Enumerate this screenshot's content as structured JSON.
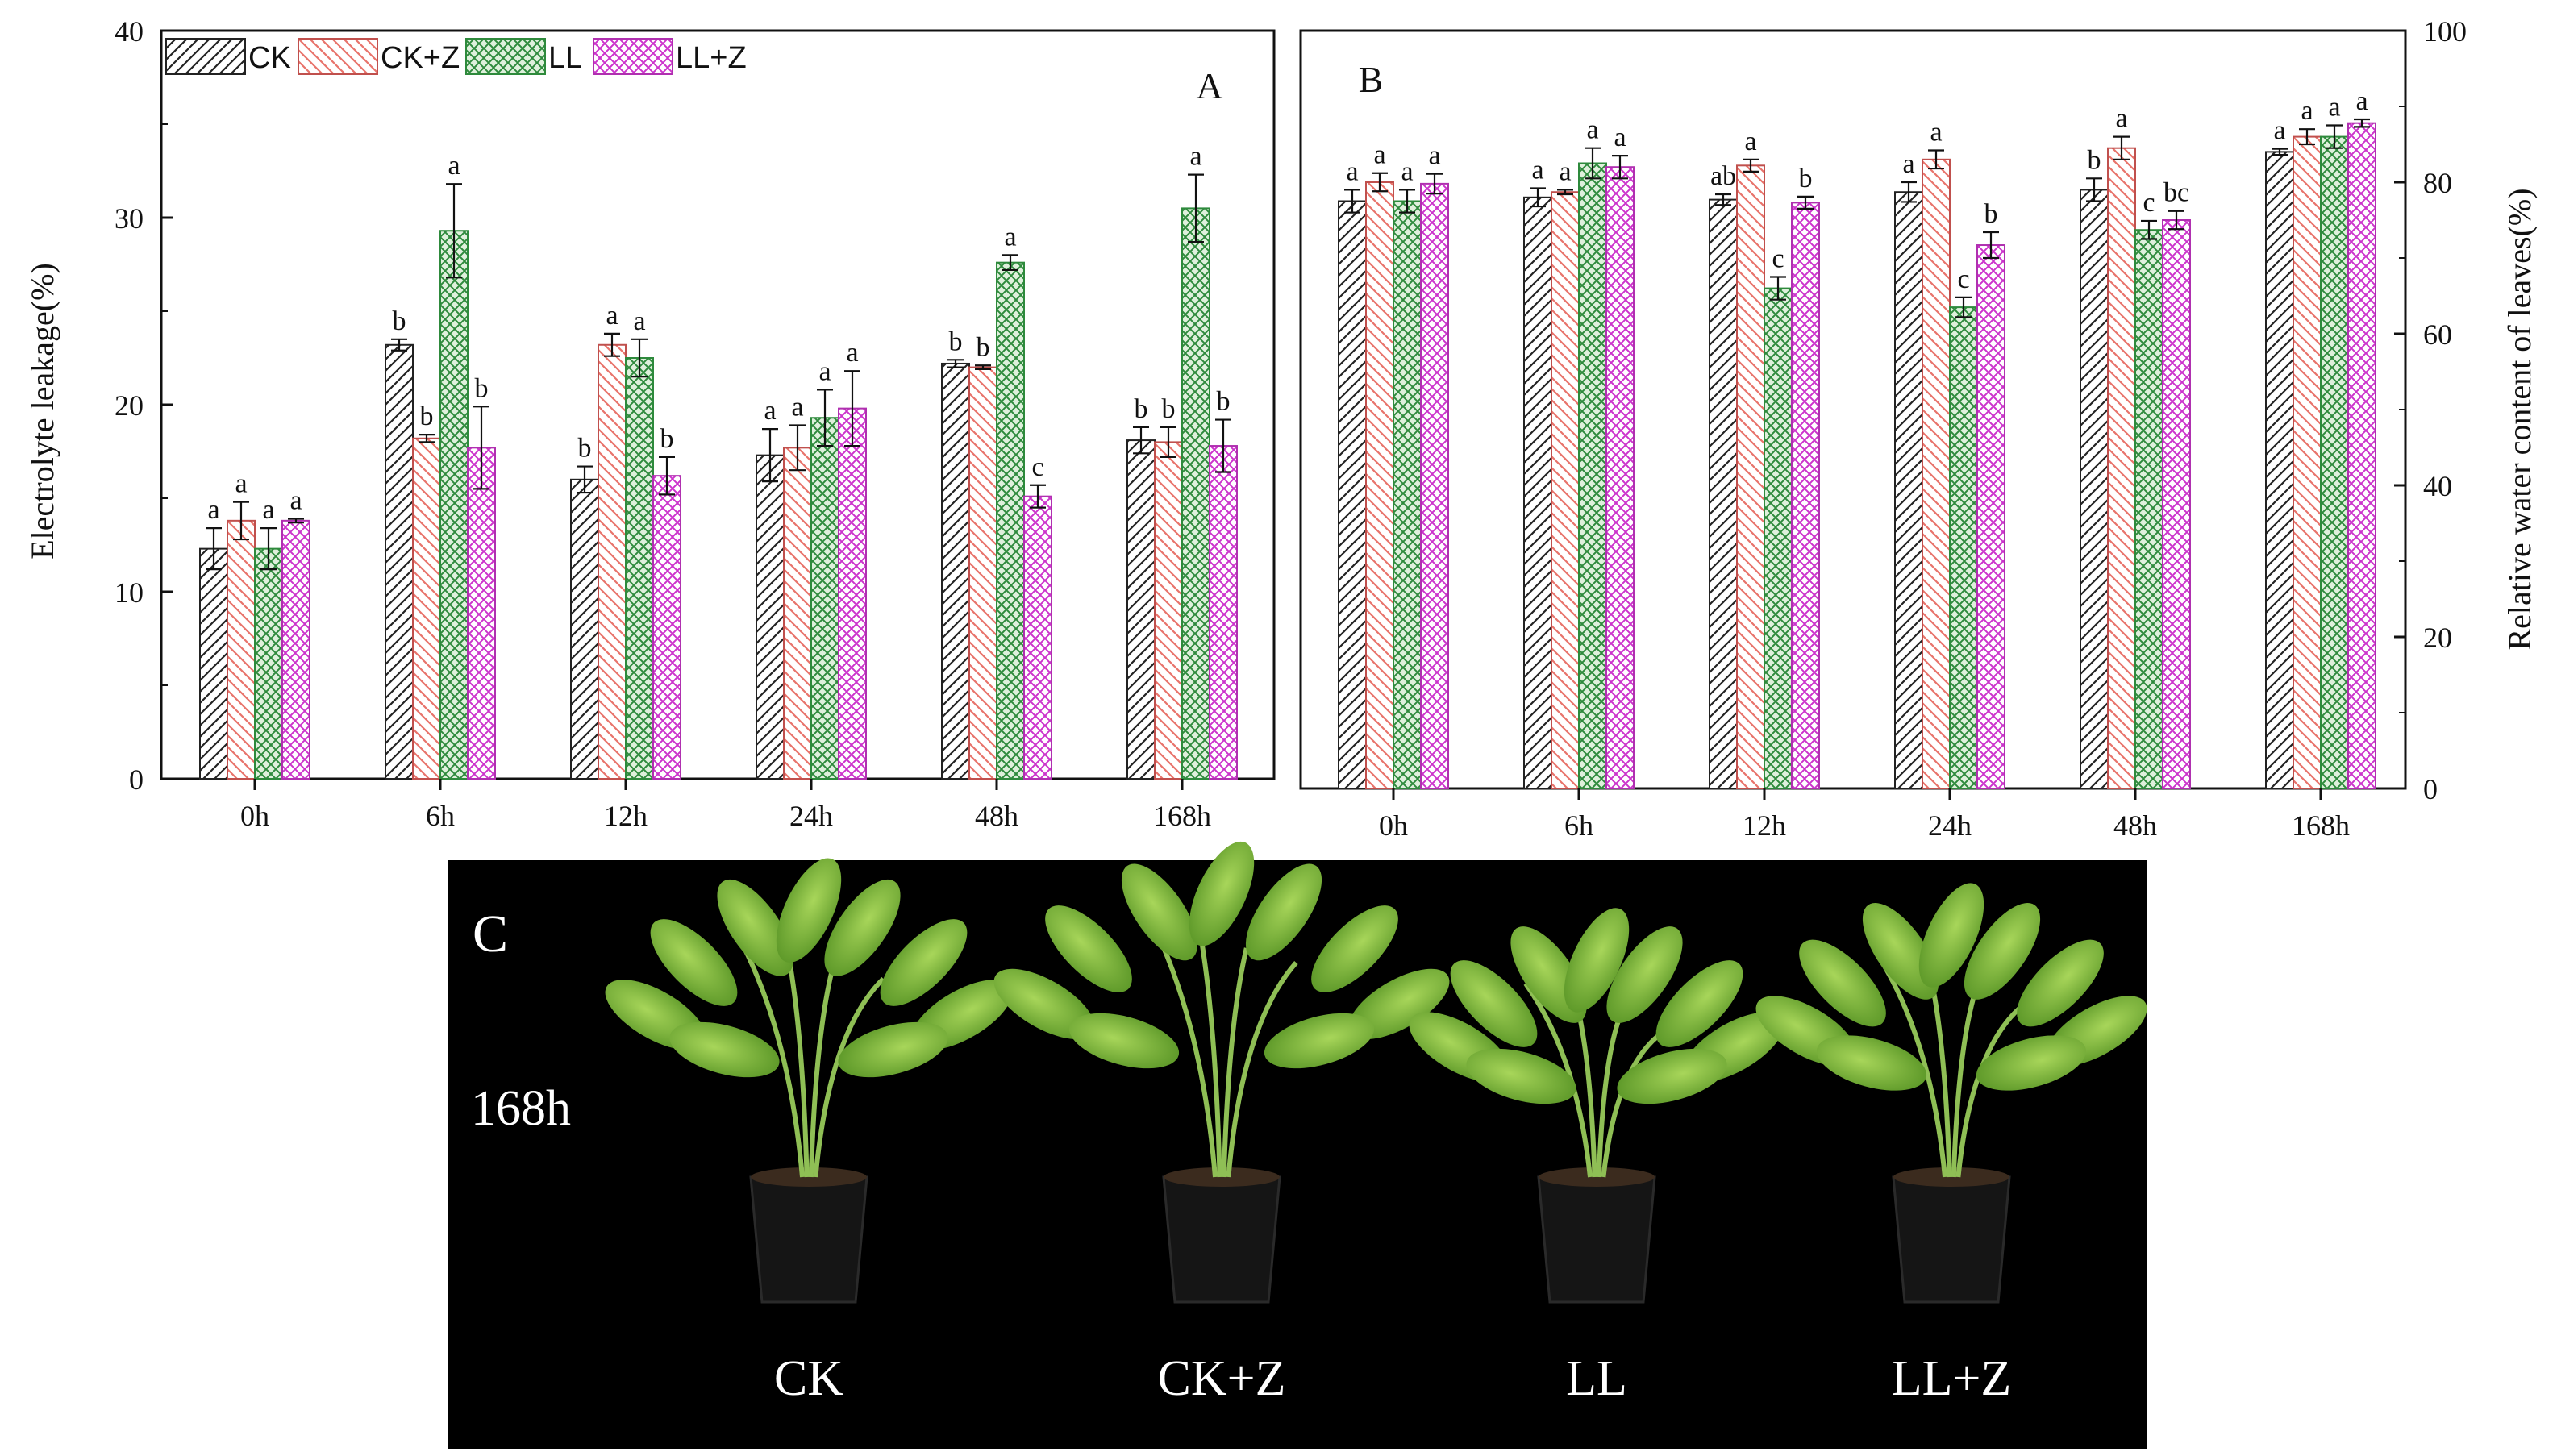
{
  "chart_data": [
    {
      "type": "bar",
      "panel_label": "A",
      "ylabel": "Electrolyte leakage(%)",
      "xlabel": "",
      "ylim": [
        0,
        40
      ],
      "yticks": [
        "0",
        "10",
        "20",
        "30",
        "40"
      ],
      "categories": [
        "0h",
        "6h",
        "12h",
        "24h",
        "48h",
        "168h"
      ],
      "legend": {
        "placement": "top-left",
        "entries": [
          "CK",
          "CK+Z",
          "LL",
          "LL+Z"
        ]
      },
      "series": [
        {
          "name": "CK",
          "values": [
            12.3,
            23.2,
            16.0,
            17.3,
            22.2,
            18.1
          ],
          "errors": [
            1.1,
            0.3,
            0.7,
            1.4,
            0.2,
            0.7
          ],
          "letters": [
            "a",
            "b",
            "b",
            "a",
            "b",
            "b"
          ]
        },
        {
          "name": "CK+Z",
          "values": [
            13.8,
            18.2,
            23.2,
            17.7,
            22.0,
            18.0
          ],
          "errors": [
            1.0,
            0.2,
            0.6,
            1.2,
            0.1,
            0.8
          ],
          "letters": [
            "a",
            "b",
            "a",
            "a",
            "b",
            "b"
          ]
        },
        {
          "name": "LL",
          "values": [
            12.3,
            29.3,
            22.5,
            19.3,
            27.6,
            30.5
          ],
          "errors": [
            1.1,
            2.5,
            1.0,
            1.5,
            0.4,
            1.8
          ],
          "letters": [
            "a",
            "a",
            "a",
            "a",
            "a",
            "a"
          ]
        },
        {
          "name": "LL+Z",
          "values": [
            13.8,
            17.7,
            16.2,
            19.8,
            15.1,
            17.8
          ],
          "errors": [
            0.1,
            2.2,
            1.0,
            2.0,
            0.6,
            1.4
          ],
          "letters": [
            "a",
            "b",
            "b",
            "a",
            "c",
            "b"
          ]
        }
      ]
    },
    {
      "type": "bar",
      "panel_label": "B",
      "ylabel": "Relative water content of leaves(%)",
      "xlabel": "",
      "ylim": [
        0,
        100
      ],
      "yticks": [
        "0",
        "20",
        "40",
        "60",
        "80",
        "100"
      ],
      "categories": [
        "0h",
        "6h",
        "12h",
        "24h",
        "48h",
        "168h"
      ],
      "series": [
        {
          "name": "CK",
          "values": [
            77.5,
            78.0,
            77.7,
            78.7,
            79.0,
            84.0
          ],
          "errors": [
            1.5,
            1.2,
            0.7,
            1.3,
            1.5,
            0.4
          ],
          "letters": [
            "a",
            "a",
            "ab",
            "a",
            "b",
            "a"
          ]
        },
        {
          "name": "CK+Z",
          "values": [
            80.0,
            78.7,
            82.2,
            83.0,
            84.5,
            86.0
          ],
          "errors": [
            1.2,
            0.3,
            0.8,
            1.2,
            1.5,
            1.0
          ],
          "letters": [
            "a",
            "a",
            "a",
            "a",
            "a",
            "a"
          ]
        },
        {
          "name": "LL",
          "values": [
            77.5,
            82.5,
            66.0,
            63.5,
            73.7,
            86.0
          ],
          "errors": [
            1.5,
            2.0,
            1.5,
            1.3,
            1.2,
            1.5
          ],
          "letters": [
            "a",
            "a",
            "c",
            "c",
            "c",
            "a"
          ]
        },
        {
          "name": "LL+Z",
          "values": [
            79.8,
            82.0,
            77.3,
            71.7,
            75.0,
            87.8
          ],
          "errors": [
            1.3,
            1.5,
            0.8,
            1.7,
            1.2,
            0.5
          ],
          "letters": [
            "a",
            "a",
            "b",
            "b",
            "bc",
            "a"
          ]
        }
      ]
    }
  ],
  "colors": {
    "CK": "#222222",
    "CK+Z": "#e8736b",
    "LL": "#2e8a3c",
    "LL+Z": "#cc33cc"
  },
  "photo": {
    "panel_label": "C",
    "time_label": "168h",
    "plants": [
      "CK",
      "CK+Z",
      "LL",
      "LL+Z"
    ]
  }
}
